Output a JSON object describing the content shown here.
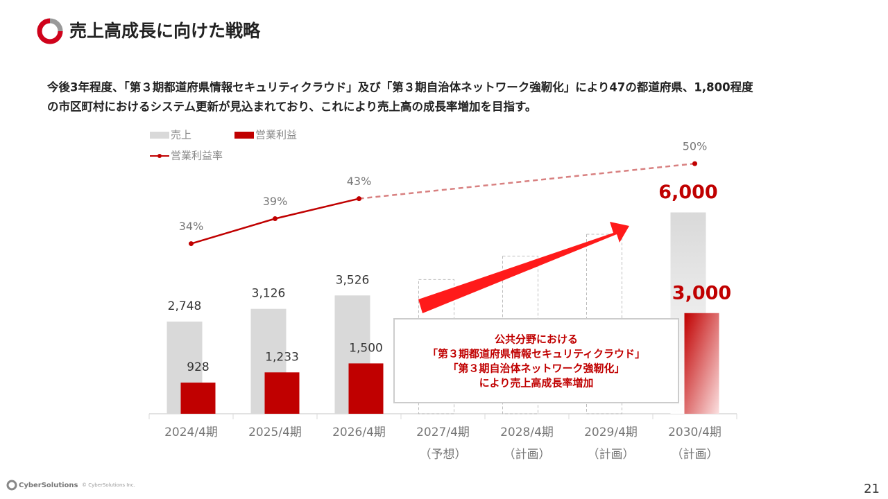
{
  "header": {
    "title": "売上高成長に向けた戦略"
  },
  "lead": [
    "今後3年程度、「第３期都道府県情報セキュリティクラウド」及び「第３期自治体ネットワーク強靭化」により47の都道府県、1,800程度",
    "の市区町村におけるシステム更新が見込まれており、これにより売上高の成長率増加を目指す。"
  ],
  "callout": [
    "公共分野における",
    "「第３期都道府県情報セキュリティクラウド」",
    "「第３期自治体ネットワーク強靭化」",
    "により売上高成長率増加"
  ],
  "footer": {
    "brand": "CyberSolutions",
    "copyright": "© CyberSolutions Inc.",
    "page": "21"
  },
  "chart_data": {
    "type": "bar",
    "categories": [
      "2024/4期",
      "2025/4期",
      "2026/4期",
      "2027/4期",
      "2028/4期",
      "2029/4期",
      "2030/4期"
    ],
    "category_notes": [
      null,
      null,
      null,
      "（予想）",
      "（計画）",
      "（計画）",
      "（計画）"
    ],
    "bar_styles": [
      "solid",
      "solid",
      "solid",
      "dashed",
      "dashed",
      "dashed",
      "gradient"
    ],
    "ylim": [
      0,
      8200
    ],
    "y2lim": [
      0,
      55
    ],
    "series": [
      {
        "name": "売上",
        "color": "#d9d9d9",
        "values": [
          2748,
          3126,
          3526,
          4000,
          4700,
          5350,
          6000
        ],
        "value_labels": [
          "2,748",
          "3,126",
          "3,526",
          null,
          null,
          null,
          "6,000"
        ]
      },
      {
        "name": "営業利益",
        "color": "#c00000",
        "values": [
          928,
          1233,
          1500,
          null,
          null,
          null,
          3000
        ],
        "value_labels": [
          "928",
          "1,233",
          "1,500",
          null,
          null,
          null,
          "3,000"
        ]
      },
      {
        "name": "営業利益率",
        "type": "line",
        "axis": "y2",
        "color": "#c00000",
        "values": [
          34,
          39,
          43,
          null,
          null,
          null,
          50
        ],
        "value_labels": [
          "34%",
          "39%",
          "43%",
          null,
          null,
          null,
          "50%"
        ]
      }
    ]
  }
}
